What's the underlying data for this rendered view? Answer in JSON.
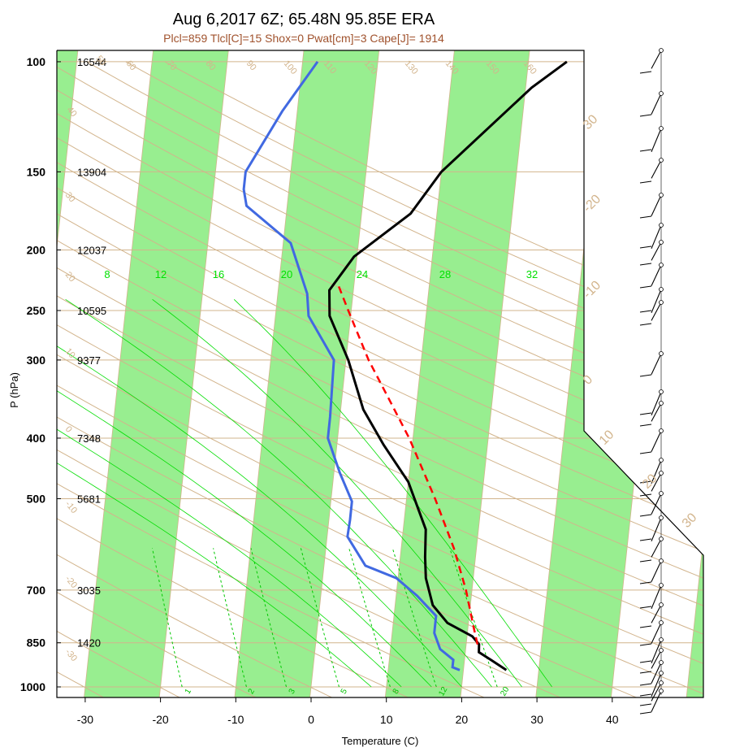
{
  "chart_data": {
    "type": "skew-t log-p sounding",
    "title": "Aug 6,2017 6Z; 65.48N 95.85E ERA",
    "subtitle": "Plcl=859 Tlcl[C]=15 Shox=0 Pwat[cm]=3 Cape[J]= 1914",
    "xlabel": "Temperature (C)",
    "ylabel": "P (hPa)",
    "x_ticks": [
      -30,
      -20,
      -10,
      0,
      10,
      20,
      30,
      40
    ],
    "pressure_levels": [
      100,
      150,
      200,
      250,
      300,
      400,
      500,
      700,
      850,
      1000
    ],
    "heights": [
      {
        "p": 100,
        "label": "16544"
      },
      {
        "p": 150,
        "label": "13904"
      },
      {
        "p": 200,
        "label": "12037"
      },
      {
        "p": 250,
        "label": "10595"
      },
      {
        "p": 300,
        "label": "9377"
      },
      {
        "p": 400,
        "label": "7348"
      },
      {
        "p": 500,
        "label": "5681"
      },
      {
        "p": 700,
        "label": "3035"
      },
      {
        "p": 850,
        "label": "1420"
      }
    ],
    "xlim": [
      -34,
      52
    ],
    "ylim": [
      1050,
      100
    ],
    "skewed_isotherm_labels": [
      "30",
      "-20",
      "-10",
      "0",
      "10",
      "20",
      "30"
    ],
    "dry_adiabat_labels": [
      "40",
      "50",
      "60",
      "70",
      "80",
      "90",
      "100",
      "110",
      "120",
      "130",
      "140",
      "150",
      "160",
      "30",
      "20",
      "10",
      "0",
      "-10",
      "-20",
      "-30"
    ],
    "mixing_ratio_labels_top": [
      "8",
      "12",
      "16",
      "20",
      "24",
      "28",
      "32"
    ],
    "mixing_ratio_labels_bottom": [
      "1",
      "2",
      "3",
      "5",
      "8",
      "12",
      "20"
    ],
    "series": [
      {
        "name": "Temperature",
        "color": "#000000",
        "points": [
          [
            940,
            25.7
          ],
          [
            905,
            23.5
          ],
          [
            880,
            21.8
          ],
          [
            855,
            21.7
          ],
          [
            830,
            20.7
          ],
          [
            790,
            17.2
          ],
          [
            740,
            15.0
          ],
          [
            670,
            13.7
          ],
          [
            620,
            13.3
          ],
          [
            560,
            13.0
          ],
          [
            470,
            10.0
          ],
          [
            410,
            6.2
          ],
          [
            360,
            3.0
          ],
          [
            300,
            0.3
          ],
          [
            255,
            -2.8
          ],
          [
            232,
            -3.2
          ],
          [
            205,
            -0.4
          ],
          [
            175,
            6.5
          ],
          [
            150,
            10.0
          ],
          [
            110,
            20.8
          ],
          [
            100,
            25.1
          ]
        ]
      },
      {
        "name": "Dew point",
        "color": "#4169e1",
        "points": [
          [
            940,
            19.5
          ],
          [
            930,
            18.5
          ],
          [
            905,
            18.5
          ],
          [
            870,
            16.6
          ],
          [
            820,
            15.6
          ],
          [
            770,
            15.6
          ],
          [
            715,
            12.8
          ],
          [
            670,
            9.8
          ],
          [
            640,
            5.5
          ],
          [
            575,
            2.7
          ],
          [
            540,
            2.8
          ],
          [
            505,
            2.8
          ],
          [
            455,
            0.8
          ],
          [
            400,
            -1.3
          ],
          [
            370,
            -1.3
          ],
          [
            300,
            -1.6
          ],
          [
            255,
            -5.6
          ],
          [
            235,
            -6.1
          ],
          [
            195,
            -9.0
          ],
          [
            170,
            -15.4
          ],
          [
            160,
            -16.0
          ],
          [
            150,
            -16.0
          ],
          [
            120,
            -12.0
          ],
          [
            100,
            -8.0
          ]
        ]
      },
      {
        "name": "Parcel path",
        "color": "#ff0000",
        "dashed": true,
        "points": [
          [
            855,
            21.5
          ],
          [
            800,
            20.7
          ],
          [
            700,
            19.2
          ],
          [
            600,
            17.0
          ],
          [
            500,
            13.8
          ],
          [
            400,
            9.5
          ],
          [
            350,
            6.5
          ],
          [
            300,
            3.0
          ],
          [
            250,
            -0.4
          ],
          [
            225,
            -2.3
          ]
        ]
      }
    ],
    "wind_barbs": "column of wind barbs at right side from 1000 to 100 hPa"
  }
}
